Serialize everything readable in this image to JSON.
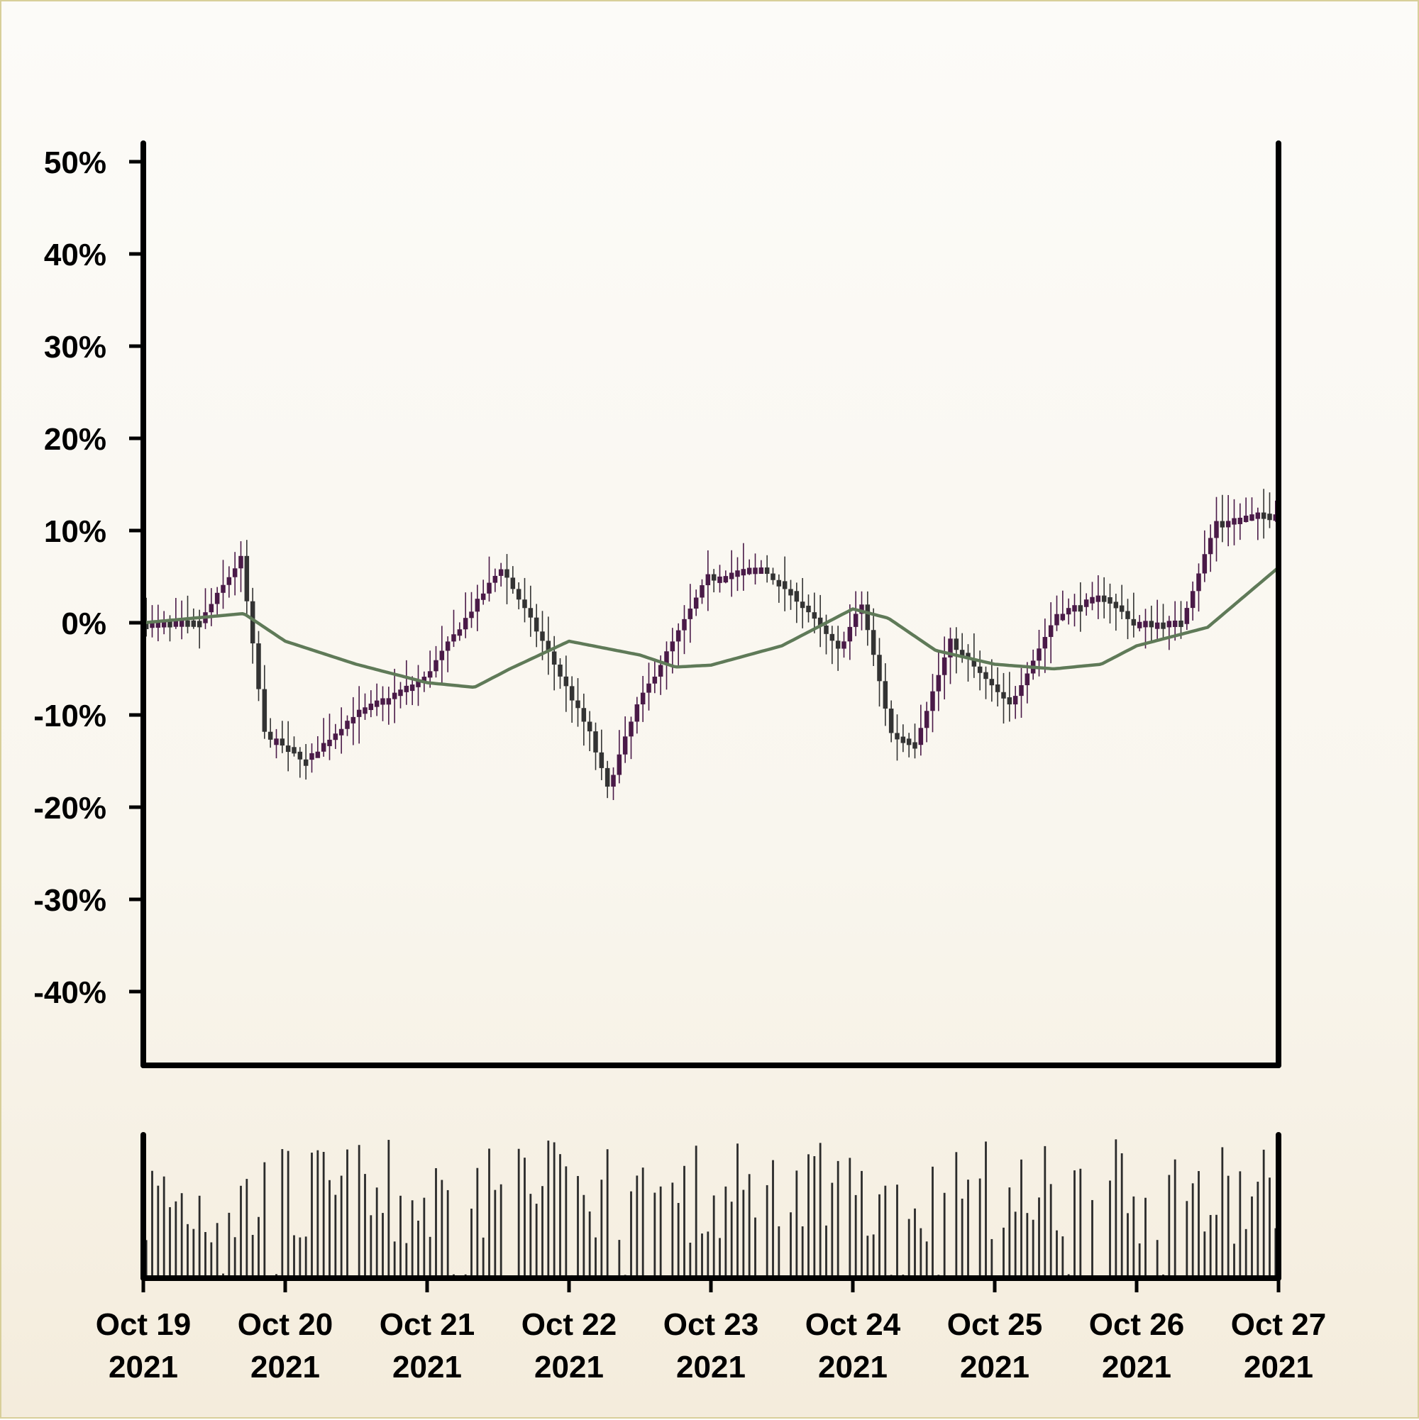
{
  "chart_data": {
    "type": "candlestick",
    "title": "",
    "xlabel": "",
    "ylabel": "",
    "y_unit": "%",
    "ylim": [
      -48,
      52
    ],
    "y_ticks": [
      {
        "value": 50,
        "label": "50%"
      },
      {
        "value": 40,
        "label": "40%"
      },
      {
        "value": 30,
        "label": "30%"
      },
      {
        "value": 20,
        "label": "20%"
      },
      {
        "value": 10,
        "label": "10%"
      },
      {
        "value": 0,
        "label": "0%"
      },
      {
        "value": -10,
        "label": "-10%"
      },
      {
        "value": -20,
        "label": "-20%"
      },
      {
        "value": -30,
        "label": "-30%"
      },
      {
        "value": -40,
        "label": "-40%"
      }
    ],
    "x_ticks": [
      {
        "date": "2021-10-19",
        "line1": "Oct 19",
        "line2": "2021"
      },
      {
        "date": "2021-10-20",
        "line1": "Oct 20",
        "line2": "2021"
      },
      {
        "date": "2021-10-21",
        "line1": "Oct 21",
        "line2": "2021"
      },
      {
        "date": "2021-10-22",
        "line1": "Oct 22",
        "line2": "2021"
      },
      {
        "date": "2021-10-23",
        "line1": "Oct 23",
        "line2": "2021"
      },
      {
        "date": "2021-10-24",
        "line1": "Oct 24",
        "line2": "2021"
      },
      {
        "date": "2021-10-25",
        "line1": "Oct 25",
        "line2": "2021"
      },
      {
        "date": "2021-10-26",
        "line1": "Oct 26",
        "line2": "2021"
      },
      {
        "date": "2021-10-27",
        "line1": "Oct 27",
        "line2": "2021"
      }
    ],
    "x_range": [
      "2021-10-19",
      "2021-10-27"
    ],
    "grid": false,
    "colors": {
      "up": "#4a1a48",
      "down": "#333333",
      "moving_average": "#5f7a58",
      "volume": "#2b2b2b",
      "axis": "#000000"
    },
    "price_path_keypoints": [
      [
        "2021-10-19 00:00",
        0
      ],
      [
        "2021-10-19 10:00",
        0
      ],
      [
        "2021-10-19 17:00",
        7
      ],
      [
        "2021-10-19 21:00",
        -12
      ],
      [
        "2021-10-20 04:00",
        -15
      ],
      [
        "2021-10-20 12:00",
        -10
      ],
      [
        "2021-10-21 00:00",
        -6
      ],
      [
        "2021-10-21 13:00",
        6
      ],
      [
        "2021-10-21 20:00",
        -2
      ],
      [
        "2021-10-22 04:00",
        -12
      ],
      [
        "2021-10-22 07:00",
        -18
      ],
      [
        "2021-10-22 12:00",
        -9
      ],
      [
        "2021-10-22 19:00",
        -1
      ],
      [
        "2021-10-23 00:00",
        5
      ],
      [
        "2021-10-23 09:00",
        6
      ],
      [
        "2021-10-23 16:00",
        2
      ],
      [
        "2021-10-23 22:00",
        -3
      ],
      [
        "2021-10-24 02:00",
        2
      ],
      [
        "2021-10-24 07:00",
        -12
      ],
      [
        "2021-10-24 11:00",
        -13
      ],
      [
        "2021-10-24 17:00",
        -2
      ],
      [
        "2021-10-25 03:00",
        -9
      ],
      [
        "2021-10-25 11:00",
        1
      ],
      [
        "2021-10-25 19:00",
        3
      ],
      [
        "2021-10-26 00:00",
        0
      ],
      [
        "2021-10-26 08:00",
        0
      ],
      [
        "2021-10-26 14:00",
        11
      ],
      [
        "2021-10-27 00:00",
        12
      ]
    ],
    "moving_average_keypoints": [
      [
        "2021-10-19 00:00",
        0
      ],
      [
        "2021-10-19 17:00",
        1
      ],
      [
        "2021-10-20 00:00",
        -2
      ],
      [
        "2021-10-20 12:00",
        -4.5
      ],
      [
        "2021-10-21 00:00",
        -6.5
      ],
      [
        "2021-10-21 08:00",
        -7
      ],
      [
        "2021-10-21 14:00",
        -5
      ],
      [
        "2021-10-22 00:00",
        -2
      ],
      [
        "2021-10-22 12:00",
        -3.5
      ],
      [
        "2021-10-22 18:00",
        -4.8
      ],
      [
        "2021-10-23 00:00",
        -4.6
      ],
      [
        "2021-10-23 12:00",
        -2.5
      ],
      [
        "2021-10-24 00:00",
        1.5
      ],
      [
        "2021-10-24 06:00",
        0.5
      ],
      [
        "2021-10-24 14:00",
        -3
      ],
      [
        "2021-10-25 00:00",
        -4.5
      ],
      [
        "2021-10-25 10:00",
        -5
      ],
      [
        "2021-10-25 18:00",
        -4.5
      ],
      [
        "2021-10-26 00:00",
        -2.5
      ],
      [
        "2021-10-26 12:00",
        -0.5
      ],
      [
        "2021-10-27 00:00",
        6
      ]
    ],
    "candle_count": 192,
    "volume_range": [
      0,
      1
    ]
  }
}
